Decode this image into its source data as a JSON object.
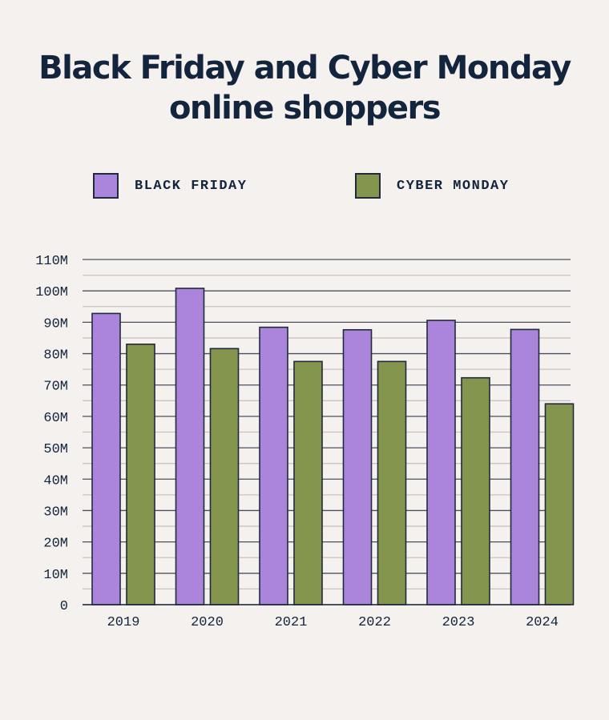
{
  "chart_data": {
    "type": "bar",
    "title": "Black Friday and Cyber Monday online shoppers",
    "categories": [
      "2019",
      "2020",
      "2021",
      "2022",
      "2023",
      "2024"
    ],
    "series": [
      {
        "name": "BLACK FRIDAY",
        "color": "#ab84dc",
        "values": [
          92.8,
          100.8,
          88.4,
          87.6,
          90.6,
          87.7
        ]
      },
      {
        "name": "CYBER MONDAY",
        "color": "#84964e",
        "values": [
          83.0,
          81.6,
          77.5,
          77.5,
          72.3,
          64.0
        ]
      }
    ],
    "unit": "M",
    "ylim": [
      0,
      110
    ],
    "yticks": [
      "0",
      "10M",
      "20M",
      "30M",
      "40M",
      "50M",
      "60M",
      "70M",
      "80M",
      "90M",
      "100M",
      "110M"
    ],
    "grid": true,
    "legend": "top"
  }
}
